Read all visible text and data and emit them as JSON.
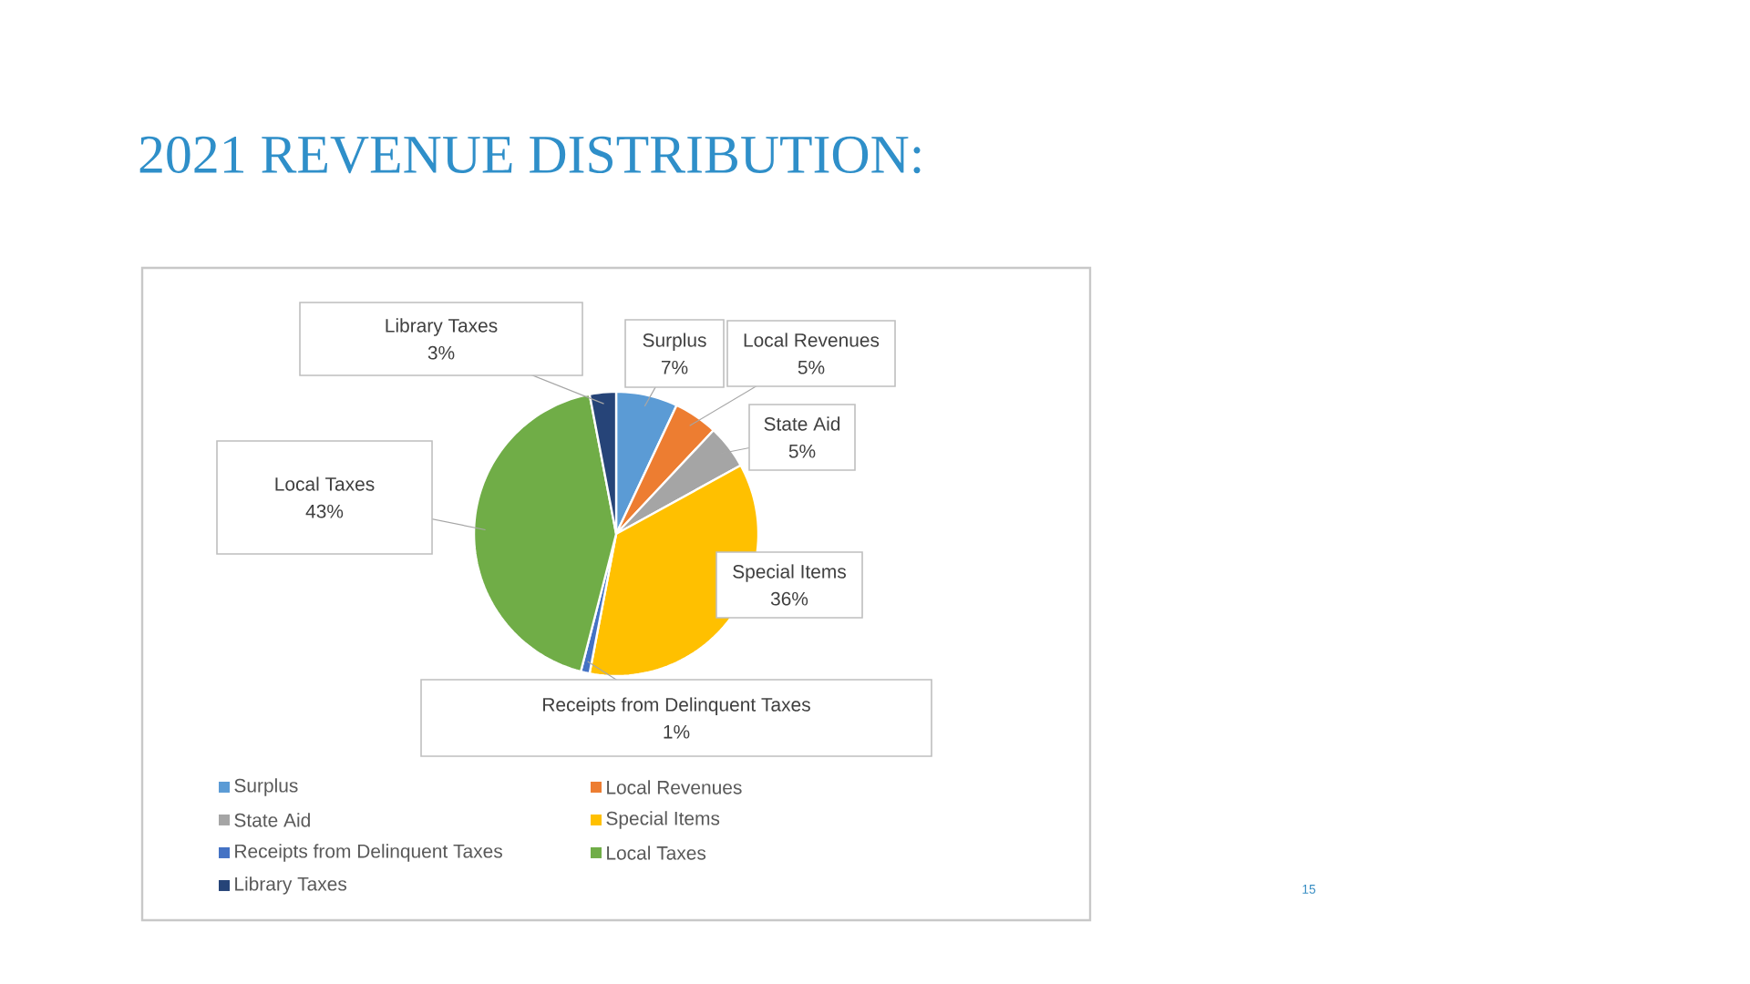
{
  "chart_data": {
    "type": "pie",
    "title": "2021 REVENUE DISTRIBUTION:",
    "categories": [
      "Surplus",
      "Local Revenues",
      "State Aid",
      "Special Items",
      "Receipts from Delinquent Taxes",
      "Local Taxes",
      "Library Taxes"
    ],
    "values": [
      7,
      5,
      5,
      36,
      1,
      43,
      3
    ],
    "value_labels": [
      "7%",
      "5%",
      "5%",
      "36%",
      "1%",
      "43%",
      "3%"
    ],
    "colors": [
      "#5b9bd5",
      "#ed7d31",
      "#a5a5a5",
      "#ffc000",
      "#4472c4",
      "#70ad47",
      "#264478"
    ],
    "legend": "bottom",
    "annotations": [
      "15"
    ]
  }
}
